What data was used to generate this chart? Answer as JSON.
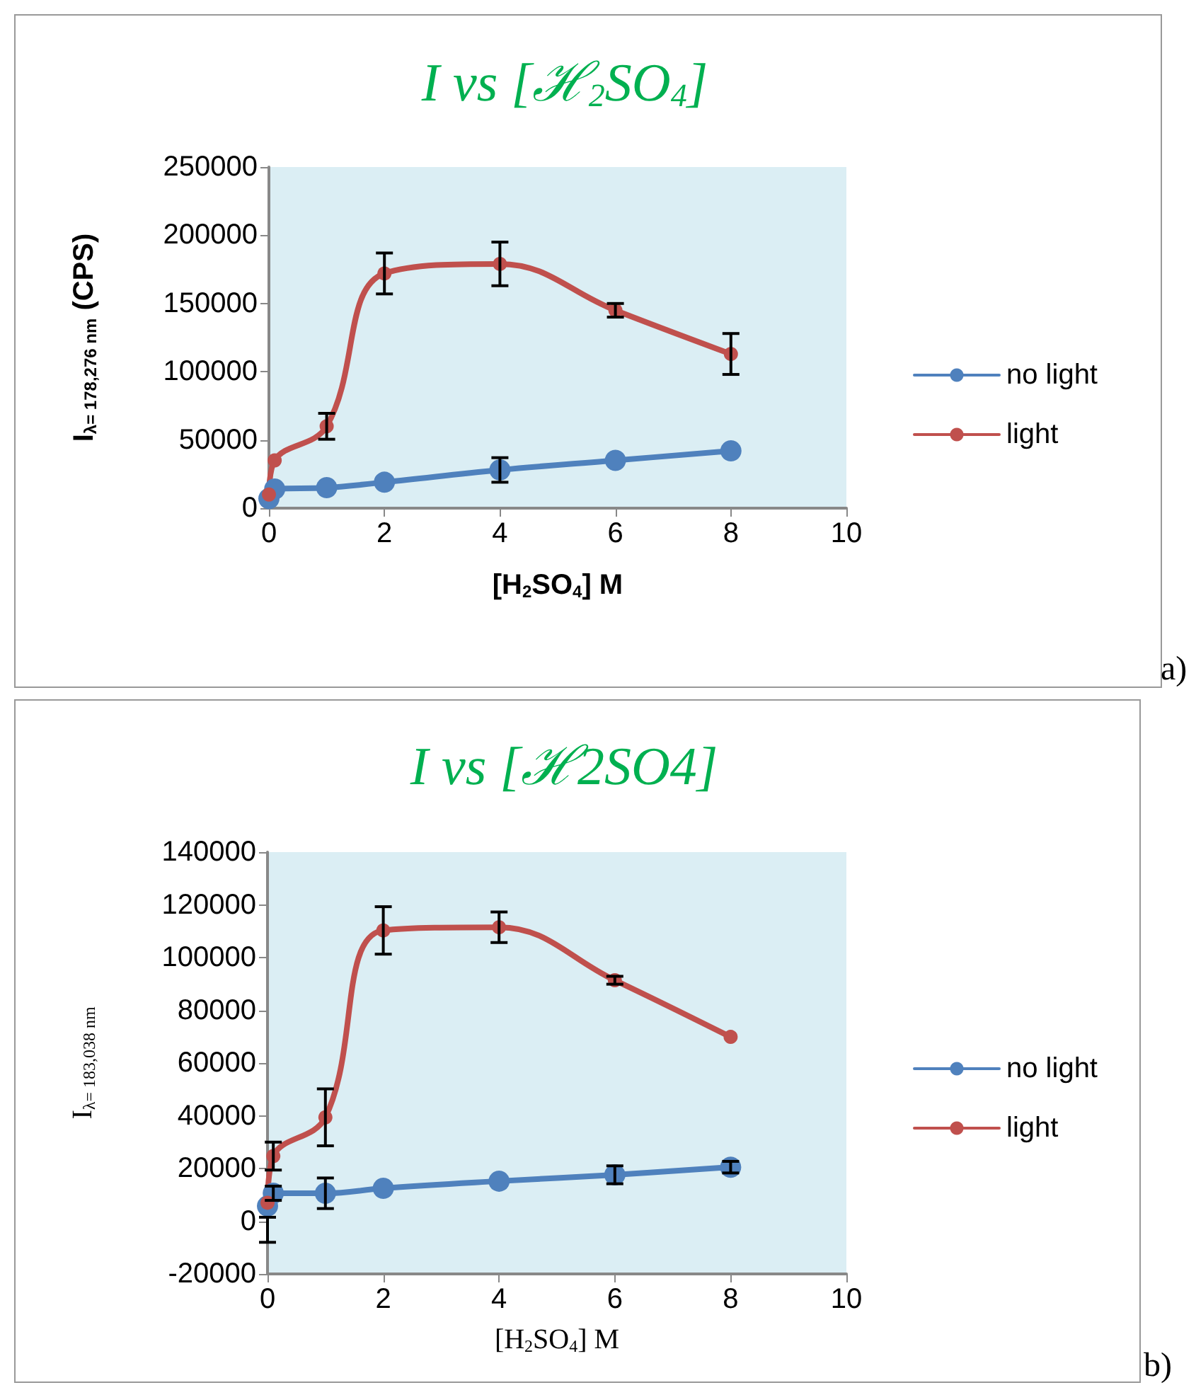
{
  "chart_data": [
    {
      "type": "line",
      "title": "I vs [ℋ$_{2}$SO$_{4}$]",
      "xlabel": "[H$_{2}$SO$_{4}$] M",
      "ylabel": "I$_{λ= 178,276 nm}$ (CPS)",
      "x": [
        0,
        0.1,
        1,
        2,
        4,
        6,
        8
      ],
      "series": [
        {
          "name": "no light",
          "color": "#4f81bd",
          "values": [
            7000,
            14000,
            15000,
            19000,
            28000,
            35000,
            42000
          ],
          "errors": [
            null,
            null,
            null,
            null,
            9000,
            null,
            null
          ]
        },
        {
          "name": "light",
          "color": "#c0504d",
          "values": [
            10000,
            35000,
            60000,
            172000,
            179000,
            145000,
            113000
          ],
          "errors": [
            null,
            null,
            9500,
            15000,
            16000,
            5000,
            15000
          ]
        }
      ],
      "xlim": [
        0,
        10
      ],
      "xticks": [
        0,
        2,
        4,
        6,
        8,
        10
      ],
      "ylim": [
        0,
        250000
      ],
      "yticks": [
        0,
        50000,
        100000,
        150000,
        200000,
        250000
      ],
      "grid": false,
      "legend": "right",
      "marker": "circle",
      "line_style": "solid",
      "annotations": [
        "a)"
      ]
    },
    {
      "type": "line",
      "title": "I vs [ℋ2SO4]",
      "xlabel": "[H$_{2}$SO$_{4}$] M",
      "ylabel": "I$_{λ= 183,038 nm}$",
      "x": [
        0,
        0.1,
        1,
        2,
        4,
        6,
        8
      ],
      "series": [
        {
          "name": "no light",
          "color": "#4f81bd",
          "values": [
            5800,
            10600,
            10600,
            12500,
            15200,
            17600,
            20500
          ],
          "errors": [
            [
              -8000,
              1500
            ],
            2700,
            5800,
            null,
            null,
            3400,
            2200
          ]
        },
        {
          "name": "light",
          "color": "#c0504d",
          "values": [
            7000,
            24700,
            39400,
            110300,
            111500,
            91400,
            69900
          ],
          "errors": [
            null,
            5300,
            10800,
            9000,
            5800,
            1500,
            null
          ]
        }
      ],
      "xlim": [
        0,
        10
      ],
      "xticks": [
        0,
        2,
        4,
        6,
        8,
        10
      ],
      "ylim": [
        -20000,
        140000
      ],
      "yticks": [
        -20000,
        0,
        20000,
        40000,
        60000,
        80000,
        100000,
        120000,
        140000
      ],
      "grid": false,
      "legend": "right",
      "marker": "circle",
      "line_style": "solid",
      "annotations": [
        "b)"
      ]
    }
  ]
}
